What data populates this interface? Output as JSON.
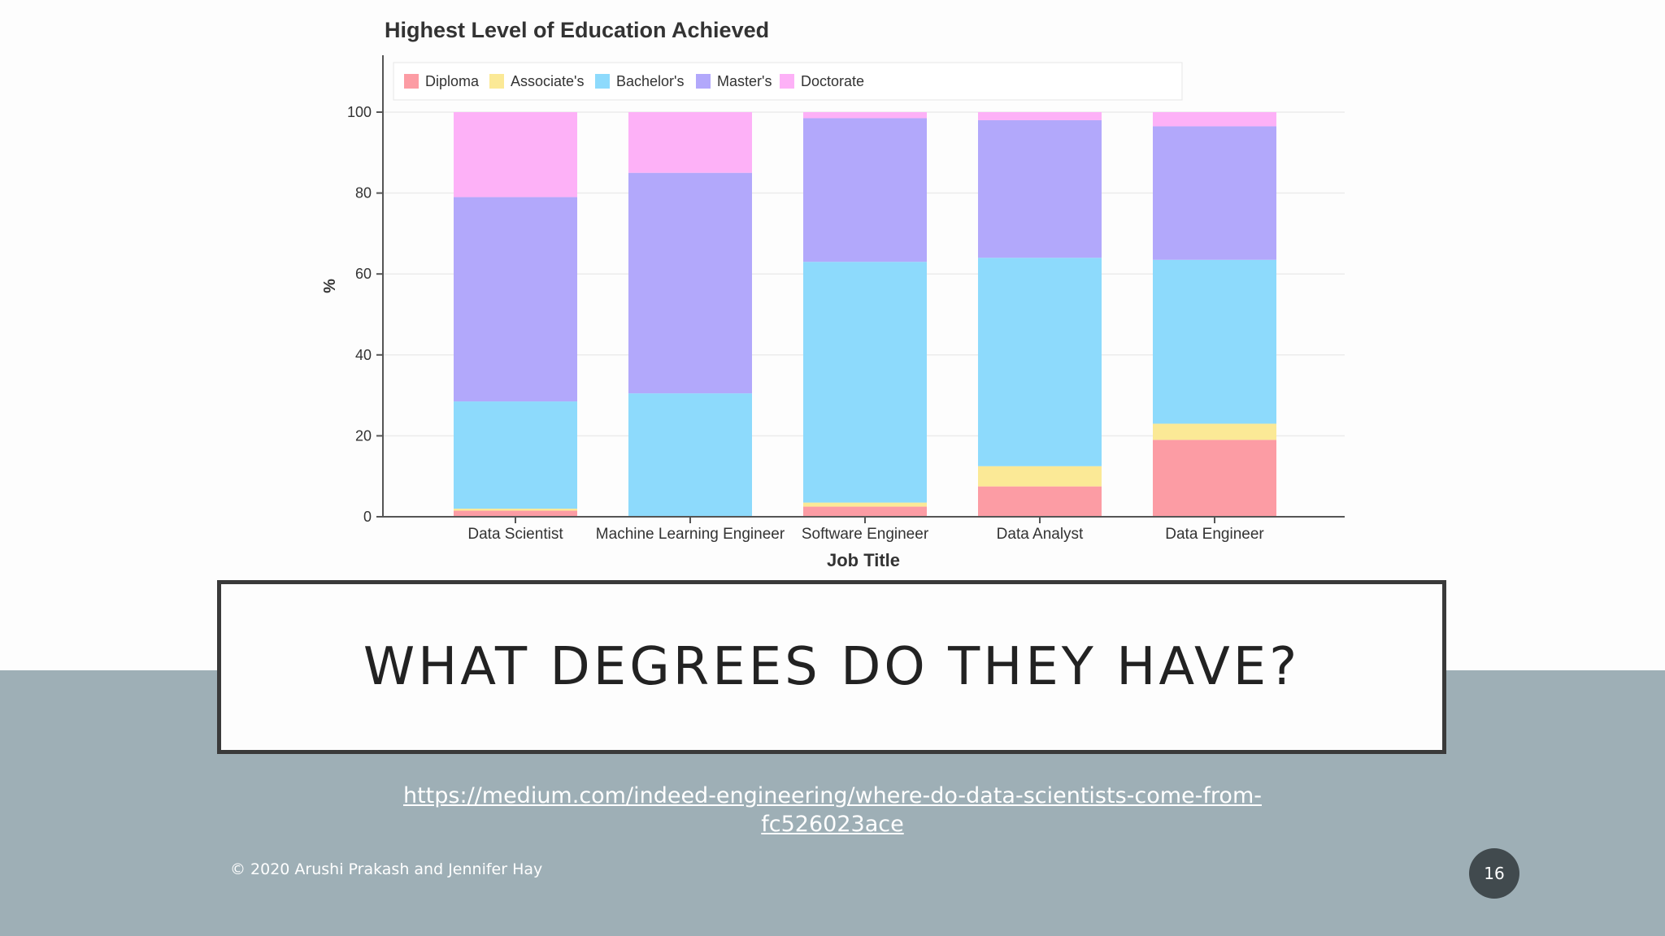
{
  "slide": {
    "heading": "WHAT DEGREES DO THEY HAVE?",
    "source_link": "https://medium.com/indeed-engineering/where-do-data-scientists-come-from-fc526023ace",
    "footer": "© 2020 Arushi Prakash and Jennifer Hay",
    "page_number": "16"
  },
  "chart_data": {
    "type": "bar",
    "stacked": true,
    "title": "Highest Level of Education Achieved",
    "xlabel": "Job Title",
    "ylabel": "%",
    "ylim": [
      0,
      100
    ],
    "yticks": [
      0,
      20,
      40,
      60,
      80,
      100
    ],
    "grid": true,
    "legend_position": "top-left",
    "categories": [
      "Data Scientist",
      "Machine Learning Engineer",
      "Software Engineer",
      "Data Analyst",
      "Data Engineer"
    ],
    "series": [
      {
        "name": "Diploma",
        "color": "#fc9ca4",
        "values": [
          1.5,
          0,
          2.5,
          7.5,
          19
        ]
      },
      {
        "name": "Associate's",
        "color": "#fbe996",
        "values": [
          0.5,
          0,
          1,
          5,
          4
        ]
      },
      {
        "name": "Bachelor's",
        "color": "#8ddafc",
        "values": [
          26.5,
          30.5,
          59.5,
          51.5,
          40.5
        ]
      },
      {
        "name": "Master's",
        "color": "#b2a8fb",
        "values": [
          50.5,
          54.5,
          35.5,
          34,
          33
        ]
      },
      {
        "name": "Doctorate",
        "color": "#fdb1f7",
        "values": [
          21,
          15,
          1.5,
          2,
          3.5
        ]
      }
    ]
  }
}
